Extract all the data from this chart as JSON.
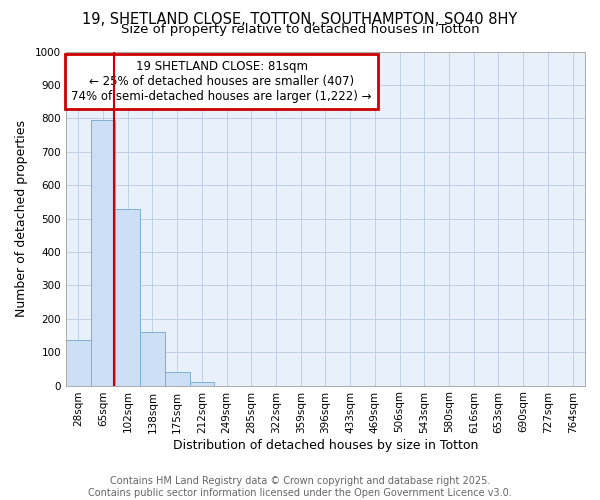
{
  "title": "19, SHETLAND CLOSE, TOTTON, SOUTHAMPTON, SO40 8HY",
  "subtitle": "Size of property relative to detached houses in Totton",
  "xlabel": "Distribution of detached houses by size in Totton",
  "ylabel": "Number of detached properties",
  "categories": [
    "28sqm",
    "65sqm",
    "102sqm",
    "138sqm",
    "175sqm",
    "212sqm",
    "249sqm",
    "285sqm",
    "322sqm",
    "359sqm",
    "396sqm",
    "433sqm",
    "469sqm",
    "506sqm",
    "543sqm",
    "580sqm",
    "616sqm",
    "653sqm",
    "690sqm",
    "727sqm",
    "764sqm"
  ],
  "values": [
    135,
    795,
    530,
    160,
    40,
    10,
    0,
    0,
    0,
    0,
    0,
    0,
    0,
    0,
    0,
    0,
    0,
    0,
    0,
    0,
    0
  ],
  "bar_color": "#ccdff5",
  "bar_edge_color": "#7aafd4",
  "red_line_x": 1.43,
  "annotation_line1": "19 SHETLAND CLOSE: 81sqm",
  "annotation_line2": "← 25% of detached houses are smaller (407)",
  "annotation_line3": "74% of semi-detached houses are larger (1,222) →",
  "annotation_box_color": "#cc0000",
  "ylim": [
    0,
    1000
  ],
  "yticks": [
    0,
    100,
    200,
    300,
    400,
    500,
    600,
    700,
    800,
    900,
    1000
  ],
  "footer_line1": "Contains HM Land Registry data © Crown copyright and database right 2025.",
  "footer_line2": "Contains public sector information licensed under the Open Government Licence v3.0.",
  "bg_color": "#ffffff",
  "plot_bg_color": "#e8f0fa",
  "grid_color": "#c0d0e8",
  "title_fontsize": 10.5,
  "subtitle_fontsize": 9.5,
  "axis_label_fontsize": 9,
  "tick_fontsize": 7.5,
  "annotation_fontsize": 8.5,
  "footer_fontsize": 7
}
